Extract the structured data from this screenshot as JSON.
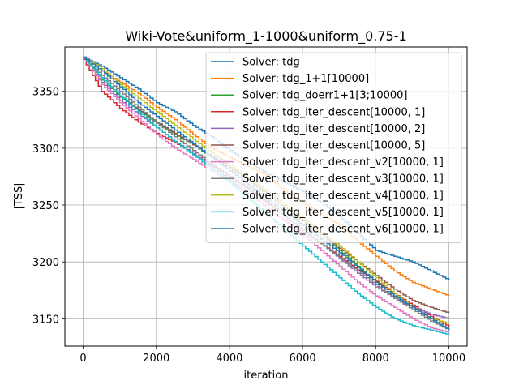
{
  "chart_data": {
    "type": "line",
    "title": "Wiki-Vote&uniform_1-1000&uniform_0.75-1",
    "xlabel": "iteration",
    "ylabel": "|TSS|",
    "xlim": [
      -500,
      10500
    ],
    "ylim": [
      3126,
      3389
    ],
    "xticks": [
      0,
      2000,
      4000,
      6000,
      8000,
      10000
    ],
    "yticks": [
      3150,
      3200,
      3250,
      3300,
      3350
    ],
    "grid": true,
    "legend_position": "top-right",
    "x": [
      0,
      500,
      1000,
      1500,
      2000,
      2500,
      3000,
      3500,
      4000,
      4500,
      5000,
      5500,
      6000,
      6500,
      7000,
      7500,
      8000,
      8500,
      9000,
      9500,
      10000
    ],
    "series": [
      {
        "name": "Solver: tdg",
        "color": "#1f77b4",
        "values": [
          3380,
          3372,
          3362,
          3352,
          3340,
          3332,
          3320,
          3310,
          3298,
          3288,
          3278,
          3270,
          3262,
          3252,
          3240,
          3225,
          3210,
          3205,
          3200,
          3192,
          3184
        ]
      },
      {
        "name": "Solver: tdg_1+1[10000]",
        "color": "#ff7f0e",
        "values": [
          3380,
          3368,
          3358,
          3348,
          3336,
          3325,
          3312,
          3300,
          3292,
          3284,
          3276,
          3262,
          3252,
          3242,
          3232,
          3218,
          3205,
          3192,
          3182,
          3176,
          3170
        ]
      },
      {
        "name": "Solver: tdg_doerr1+1[3;10000]",
        "color": "#2ca02c",
        "values": [
          3380,
          3360,
          3345,
          3333,
          3322,
          3312,
          3303,
          3292,
          3283,
          3273,
          3262,
          3250,
          3238,
          3224,
          3210,
          3196,
          3182,
          3170,
          3160,
          3150,
          3140
        ]
      },
      {
        "name": "Solver: tdg_iter_descent[10000, 1]",
        "color": "#d62728",
        "values": [
          3378,
          3350,
          3335,
          3323,
          3313,
          3305,
          3295,
          3285,
          3275,
          3265,
          3253,
          3240,
          3228,
          3216,
          3205,
          3193,
          3183,
          3172,
          3162,
          3152,
          3143
        ]
      },
      {
        "name": "Solver: tdg_iter_descent[10000, 2]",
        "color": "#9467bd",
        "values": [
          3379,
          3358,
          3342,
          3330,
          3318,
          3306,
          3295,
          3284,
          3272,
          3260,
          3248,
          3236,
          3226,
          3216,
          3203,
          3190,
          3178,
          3168,
          3160,
          3154,
          3150
        ]
      },
      {
        "name": "Solver: tdg_iter_descent[10000, 5]",
        "color": "#8c564b",
        "values": [
          3380,
          3362,
          3346,
          3334,
          3323,
          3313,
          3303,
          3293,
          3283,
          3272,
          3260,
          3248,
          3236,
          3224,
          3212,
          3200,
          3188,
          3176,
          3166,
          3160,
          3155
        ]
      },
      {
        "name": "Solver: tdg_iter_descent_v2[10000, 1]",
        "color": "#e377c2",
        "values": [
          3380,
          3356,
          3340,
          3326,
          3312,
          3300,
          3290,
          3280,
          3270,
          3260,
          3248,
          3236,
          3224,
          3210,
          3196,
          3182,
          3170,
          3160,
          3150,
          3142,
          3138
        ]
      },
      {
        "name": "Solver: tdg_iter_descent_v3[10000, 1]",
        "color": "#7f7f7f",
        "values": [
          3380,
          3364,
          3350,
          3336,
          3322,
          3310,
          3298,
          3286,
          3275,
          3264,
          3252,
          3240,
          3228,
          3216,
          3204,
          3192,
          3180,
          3168,
          3158,
          3148,
          3140
        ]
      },
      {
        "name": "Solver: tdg_iter_descent_v4[10000, 1]",
        "color": "#bcbd22",
        "values": [
          3380,
          3370,
          3356,
          3344,
          3332,
          3320,
          3308,
          3296,
          3285,
          3274,
          3262,
          3250,
          3238,
          3226,
          3214,
          3200,
          3186,
          3172,
          3160,
          3150,
          3146
        ]
      },
      {
        "name": "Solver: tdg_iter_descent_v5[10000, 1]",
        "color": "#17becf",
        "values": [
          3380,
          3362,
          3346,
          3332,
          3318,
          3306,
          3294,
          3282,
          3270,
          3256,
          3242,
          3228,
          3214,
          3200,
          3186,
          3172,
          3160,
          3150,
          3144,
          3140,
          3136
        ]
      },
      {
        "name": "Solver: tdg_iter_descent_v6[10000, 1]",
        "color": "#1f77b4",
        "values": [
          3380,
          3368,
          3354,
          3340,
          3328,
          3316,
          3304,
          3292,
          3280,
          3268,
          3256,
          3244,
          3232,
          3220,
          3208,
          3195,
          3182,
          3170,
          3160,
          3150,
          3140
        ]
      }
    ]
  }
}
